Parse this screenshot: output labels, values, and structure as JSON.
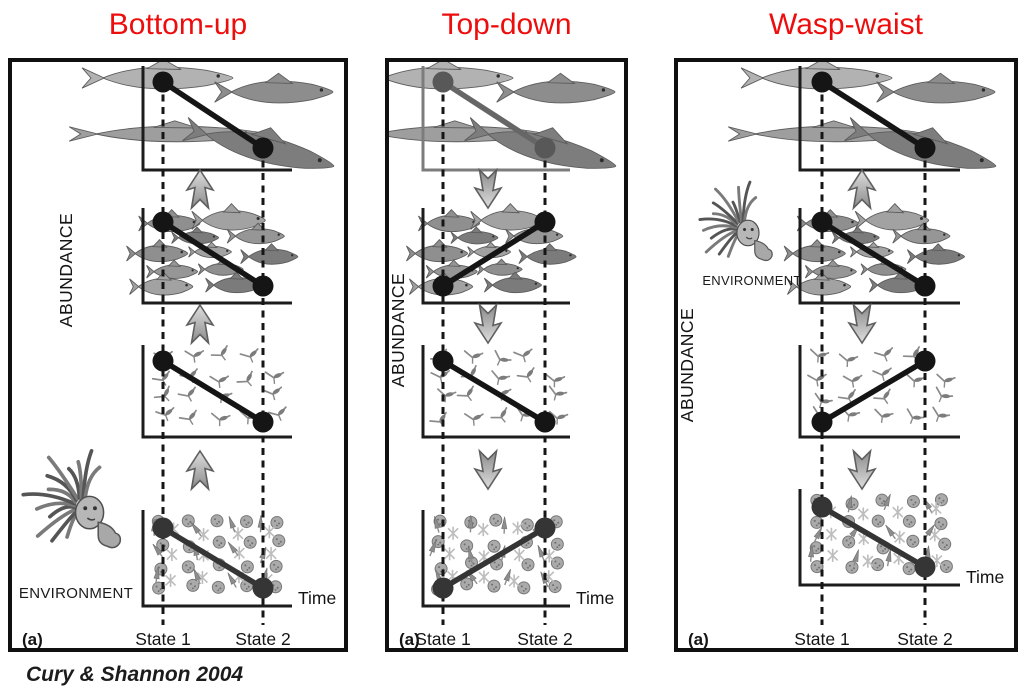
{
  "caption": "Cury & Shannon 2004",
  "labels": {
    "abundance": "ABUNDANCE",
    "time": "Time",
    "state1": "State 1",
    "state2": "State 2",
    "panel_tag": "(a)",
    "environment": "ENVIRONMENT"
  },
  "colors": {
    "title_red": "#ee0d0d",
    "ink": "#141414",
    "grayed_ink": "#6a6a6a",
    "soft_ink": "#353535",
    "arrow_light": "#dedede",
    "arrow_dark": "#8a8a8a"
  },
  "panels": [
    {
      "title": "Bottom-up",
      "tag": "(a)",
      "environment": {
        "present": true,
        "position": "bottom-left",
        "acts_on": "phytoplankton"
      },
      "arrows": [
        {
          "from": "phytoplankton",
          "to": "zooplankton",
          "direction": "up"
        },
        {
          "from": "zooplankton",
          "to": "small-pelagic-fish",
          "direction": "up"
        },
        {
          "from": "small-pelagic-fish",
          "to": "top-predators",
          "direction": "up"
        }
      ],
      "levels": [
        {
          "name": "top-predators",
          "trend": "decrease",
          "state1": "high",
          "state2": "low",
          "grayed": false
        },
        {
          "name": "small-pelagic-fish",
          "trend": "decrease",
          "state1": "high",
          "state2": "low",
          "grayed": false
        },
        {
          "name": "zooplankton",
          "trend": "decrease",
          "state1": "high",
          "state2": "low",
          "grayed": false
        },
        {
          "name": "phytoplankton",
          "trend": "decrease",
          "state1": "high",
          "state2": "low",
          "grayed": false
        }
      ]
    },
    {
      "title": "Top-down",
      "tag": "(a)",
      "environment": {
        "present": false
      },
      "arrows": [
        {
          "from": "top-predators",
          "to": "small-pelagic-fish",
          "direction": "down"
        },
        {
          "from": "small-pelagic-fish",
          "to": "zooplankton",
          "direction": "down"
        },
        {
          "from": "zooplankton",
          "to": "phytoplankton",
          "direction": "down"
        }
      ],
      "levels": [
        {
          "name": "top-predators",
          "trend": "decrease",
          "state1": "high",
          "state2": "low",
          "grayed": true
        },
        {
          "name": "small-pelagic-fish",
          "trend": "increase",
          "state1": "low",
          "state2": "high",
          "grayed": false
        },
        {
          "name": "zooplankton",
          "trend": "decrease",
          "state1": "high",
          "state2": "low",
          "grayed": false
        },
        {
          "name": "phytoplankton",
          "trend": "increase",
          "state1": "low",
          "state2": "high",
          "grayed": false
        }
      ]
    },
    {
      "title": "Wasp-waist",
      "tag": "(a)",
      "environment": {
        "present": true,
        "position": "middle-left",
        "acts_on": "small-pelagic-fish"
      },
      "arrows": [
        {
          "from": "small-pelagic-fish",
          "to": "top-predators",
          "direction": "up"
        },
        {
          "from": "small-pelagic-fish",
          "to": "zooplankton",
          "direction": "down"
        },
        {
          "from": "zooplankton",
          "to": "phytoplankton",
          "direction": "down"
        }
      ],
      "levels": [
        {
          "name": "top-predators",
          "trend": "decrease",
          "state1": "high",
          "state2": "low",
          "grayed": false
        },
        {
          "name": "small-pelagic-fish",
          "trend": "decrease",
          "state1": "high",
          "state2": "low",
          "grayed": false
        },
        {
          "name": "zooplankton",
          "trend": "increase",
          "state1": "low",
          "state2": "high",
          "grayed": false
        },
        {
          "name": "phytoplankton",
          "trend": "decrease",
          "state1": "high",
          "state2": "low",
          "grayed": false
        }
      ]
    }
  ]
}
